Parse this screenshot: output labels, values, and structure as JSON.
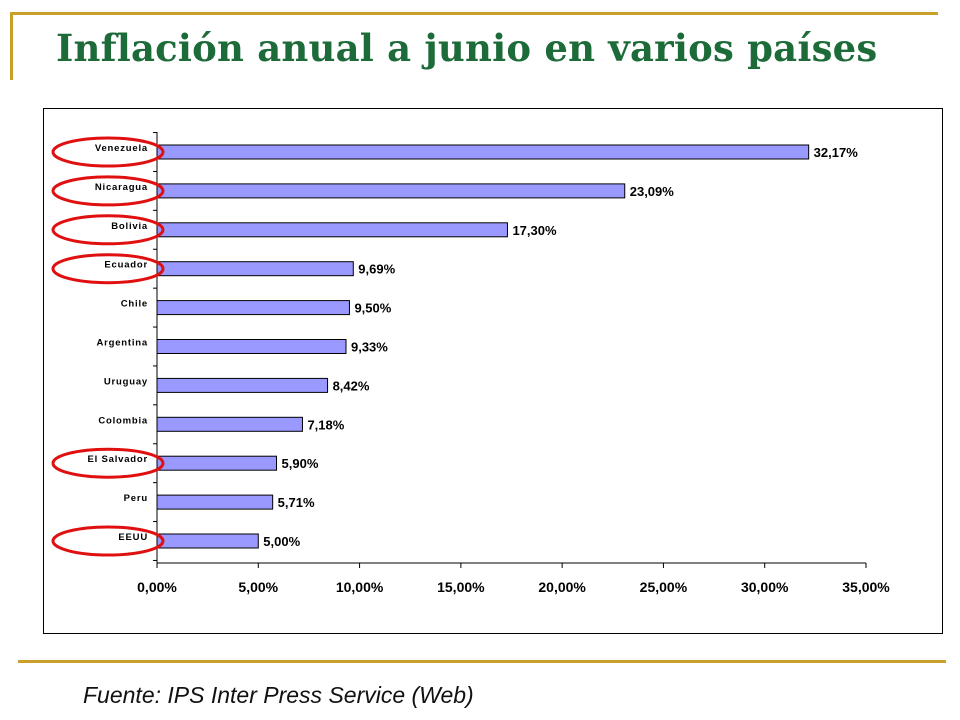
{
  "slide": {
    "title": "Inflación anual a junio en varios países",
    "source": "Fuente: IPS Inter Press Service (Web)"
  },
  "colors": {
    "accent_rule": "#c8a02a",
    "title": "#1e6b3a",
    "bar_fill": "#9999ff",
    "highlight_ellipse": "#e01010"
  },
  "chart_data": {
    "type": "bar",
    "orientation": "horizontal",
    "categories": [
      "Venezuela",
      "Nicaragua",
      "Bolivia",
      "Ecuador",
      "Chile",
      "Argentina",
      "Uruguay",
      "Colombia",
      "El Salvador",
      "Peru",
      "EEUU"
    ],
    "values": [
      32.17,
      23.09,
      17.3,
      9.69,
      9.5,
      9.33,
      8.42,
      7.18,
      5.9,
      5.71,
      5.0
    ],
    "data_labels": [
      "32,17%",
      "23,09%",
      "17,30%",
      "9,69%",
      "9,50%",
      "9,33%",
      "8,42%",
      "7,18%",
      "5,90%",
      "5,71%",
      "5,00%"
    ],
    "xlim": [
      0,
      35
    ],
    "xticks": [
      0,
      5,
      10,
      15,
      20,
      25,
      30,
      35
    ],
    "xtick_labels": [
      "0,00%",
      "5,00%",
      "10,00%",
      "15,00%",
      "20,00%",
      "25,00%",
      "30,00%",
      "35,00%"
    ],
    "grid": false,
    "highlighted_categories": [
      "Venezuela",
      "Nicaragua",
      "Bolivia",
      "Ecuador",
      "El Salvador",
      "EEUU"
    ]
  }
}
